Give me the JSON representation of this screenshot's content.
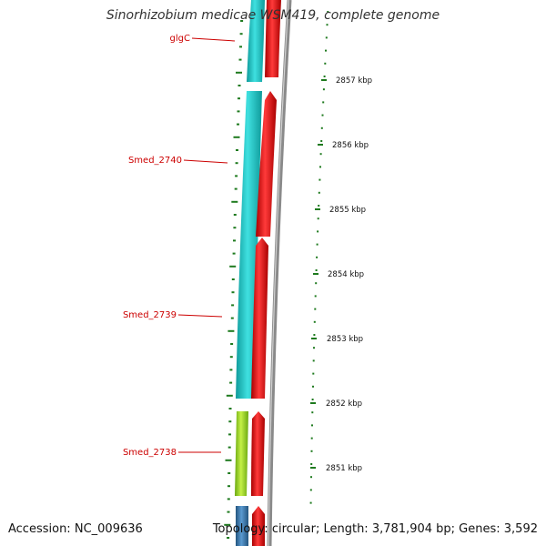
{
  "title": "Sinorhizobium medicae WSM419, complete genome",
  "footer": {
    "accession_label": "Accession:",
    "accession": "NC_009636",
    "topology_label": "Topology:",
    "topology": "circular",
    "length_label": "Length:",
    "length": "3,781,904 bp",
    "genes_label": "Genes:",
    "genes": "3,592"
  },
  "scale": {
    "unit": "kbp",
    "ticks": [
      {
        "value": 2857,
        "label": "2857 kbp"
      },
      {
        "value": 2856,
        "label": "2856 kbp"
      },
      {
        "value": 2855,
        "label": "2855 kbp"
      },
      {
        "value": 2854,
        "label": "2854 kbp"
      },
      {
        "value": 2853,
        "label": "2853 kbp"
      },
      {
        "value": 2852,
        "label": "2852 kbp"
      },
      {
        "value": 2851,
        "label": "2851 kbp"
      }
    ]
  },
  "genes": [
    {
      "name": "glgC",
      "label_color": "#cc0000"
    },
    {
      "name": "Smed_2740",
      "label_color": "#cc0000"
    },
    {
      "name": "Smed_2739",
      "label_color": "#cc0000"
    },
    {
      "name": "Smed_2738",
      "label_color": "#cc0000"
    }
  ],
  "colors": {
    "cds_cyan": "#22c8c8",
    "cds_red": "#ee1111",
    "cds_lime": "#99dd22",
    "cds_blue": "#3a78b0",
    "backbone_gray": "#888888",
    "tick_green": "#1e7a1e",
    "gene_label_red": "#cc0000"
  }
}
